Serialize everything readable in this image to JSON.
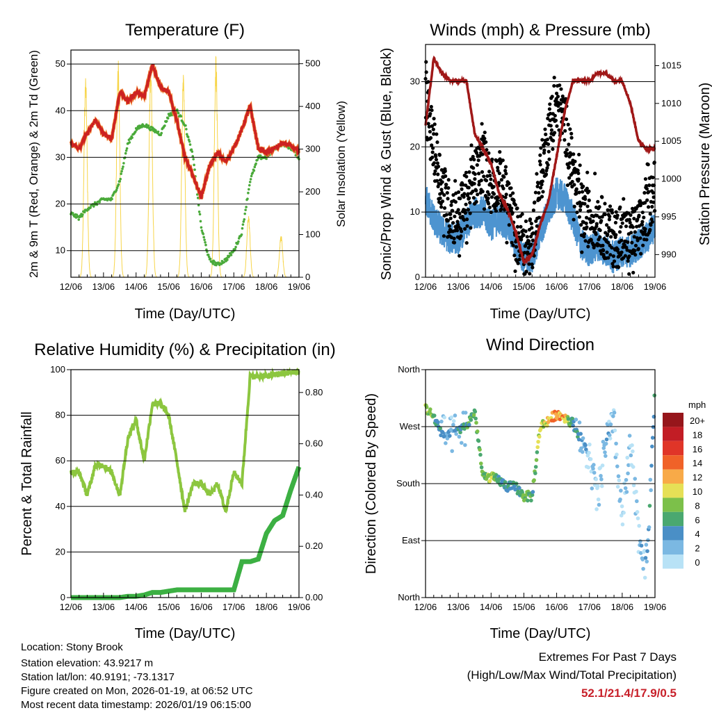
{
  "chart_data": [
    {
      "type": "line",
      "title": "Temperature (F)",
      "xlabel": "Time (Day/UTC)",
      "ylabel": "2m & 9m T (Red, Orange) & 2m Td (Green)",
      "ylabel_right": "Solar Insolation (Yellow)",
      "x_ticks": [
        "12/06",
        "13/06",
        "14/06",
        "15/06",
        "16/06",
        "17/06",
        "18/06",
        "19/06"
      ],
      "xlim_days": [
        0,
        7
      ],
      "ylim": [
        4.3,
        53
      ],
      "y_ticks": [
        10,
        20,
        30,
        40,
        50
      ],
      "ylim_right": [
        0,
        532
      ],
      "y_ticks_right": [
        0,
        100,
        200,
        300,
        400,
        500
      ],
      "grid": true,
      "sample_step_days": 0.25,
      "series": [
        {
          "name": "2m/9m Temperature",
          "color": "#cc2222",
          "values": [
            33,
            32,
            35,
            38,
            35,
            34,
            44,
            42,
            44,
            43,
            50,
            45,
            44,
            38,
            30,
            26,
            21.5,
            28,
            31,
            29,
            32,
            36,
            41,
            32,
            31,
            32,
            33,
            32.5,
            31
          ]
        },
        {
          "name": "2m Dewpoint",
          "color": "#4aaa3a",
          "values": [
            18,
            17,
            19,
            20,
            21,
            21,
            25,
            33,
            36,
            37,
            36,
            35,
            39,
            40,
            37,
            30,
            15,
            8,
            7,
            8,
            10,
            14,
            25,
            30,
            30,
            32,
            33,
            32,
            30
          ]
        },
        {
          "name": "Solar Insolation daily peak",
          "color": "#f7d54a",
          "axis": "right",
          "daily_peaks": [
            480,
            510,
            520,
            480,
            530,
            150,
            100
          ]
        }
      ]
    },
    {
      "type": "line",
      "title": "Winds (mph) & Pressure (mb)",
      "xlabel": "Time (Day/UTC)",
      "ylabel": "Sonic/Prop Wind & Gust (Blue, Black)",
      "ylabel_right": "Station Pressure (Maroon)",
      "x_ticks": [
        "12/06",
        "13/06",
        "14/06",
        "15/06",
        "16/06",
        "17/06",
        "18/06",
        "19/06"
      ],
      "xlim_days": [
        0,
        7
      ],
      "ylim": [
        0,
        35.7
      ],
      "y_ticks": [
        0,
        10,
        20,
        30
      ],
      "ylim_right": [
        987,
        1017.8
      ],
      "y_ticks_right": [
        990,
        995,
        1000,
        1005,
        1010,
        1015
      ],
      "grid": true,
      "sample_step_days": 0.25,
      "series": [
        {
          "name": "Wind",
          "color": "#4d94d0",
          "values": [
            12,
            9,
            7,
            6,
            6,
            8,
            10,
            10,
            8,
            9,
            8,
            5,
            3,
            3,
            7,
            10,
            13,
            12,
            9,
            5,
            4,
            5,
            4,
            3,
            4,
            4,
            5,
            6,
            8
          ]
        },
        {
          "name": "Gust",
          "color": "#000000",
          "values": [
            27,
            20,
            14,
            10,
            9,
            12,
            15,
            18,
            14,
            15,
            12,
            7,
            4,
            5,
            15,
            22,
            26,
            24,
            16,
            10,
            9,
            9,
            7,
            6,
            6,
            6,
            7,
            10,
            14
          ]
        },
        {
          "name": "Pressure",
          "color": "#a01818",
          "axis": "right",
          "values": [
            1007,
            1016,
            1014,
            1013,
            1013,
            1013,
            1006,
            1004,
            1002,
            998,
            996,
            993,
            989,
            990,
            994,
            997,
            1003,
            1009,
            1013,
            1013,
            1013,
            1014,
            1014,
            1013,
            1013,
            1010,
            1005,
            1004,
            1004
          ]
        }
      ]
    },
    {
      "type": "line",
      "title": "Relative Humidity (%) & Precipitation (in)",
      "xlabel": "Time (Day/UTC)",
      "ylabel": "Percent & Total Rainfall",
      "x_ticks": [
        "12/06",
        "13/06",
        "14/06",
        "15/06",
        "16/06",
        "17/06",
        "18/06",
        "19/06"
      ],
      "xlim_days": [
        0,
        7
      ],
      "ylim": [
        0,
        100
      ],
      "y_ticks": [
        0,
        20,
        40,
        60,
        80,
        100
      ],
      "ylim_right": [
        0,
        0.889
      ],
      "y_ticks_right": [
        "0.00",
        "0.20",
        "0.40",
        "0.60",
        "0.80"
      ],
      "grid": true,
      "sample_step_days": 0.25,
      "series": [
        {
          "name": "Relative Humidity",
          "color": "#8cc63f",
          "values": [
            55,
            55,
            45,
            58,
            58,
            55,
            45,
            70,
            78,
            60,
            85,
            85,
            80,
            60,
            38,
            50,
            50,
            45,
            50,
            38,
            55,
            50,
            97,
            97,
            97,
            98,
            98,
            99,
            99
          ]
        },
        {
          "name": "Total Precipitation",
          "color": "#3cb043",
          "axis": "right",
          "values": [
            0,
            0,
            0,
            0,
            0,
            0,
            0,
            0.005,
            0.005,
            0.01,
            0.02,
            0.02,
            0.025,
            0.03,
            0.03,
            0.03,
            0.03,
            0.03,
            0.03,
            0.03,
            0.03,
            0.14,
            0.14,
            0.15,
            0.25,
            0.3,
            0.32,
            0.42,
            0.51
          ]
        }
      ]
    },
    {
      "type": "scatter",
      "title": "Wind Direction",
      "xlabel": "Time (Day/UTC)",
      "ylabel": "Direction (Colored By Speed)",
      "x_ticks": [
        "12/06",
        "13/06",
        "14/06",
        "15/06",
        "16/06",
        "17/06",
        "18/06",
        "19/06"
      ],
      "xlim_days": [
        0,
        7
      ],
      "ylim": [
        0,
        360
      ],
      "y_tick_values": [
        0,
        90,
        180,
        270,
        360
      ],
      "y_tick_labels": [
        "North",
        "East",
        "South",
        "West",
        "North"
      ],
      "grid": true,
      "sample_step_days": 0.25,
      "direction_deg": [
        300,
        285,
        260,
        255,
        265,
        270,
        295,
        190,
        190,
        185,
        175,
        175,
        160,
        160,
        270,
        280,
        290,
        285,
        275,
        250,
        220,
        150,
        250,
        270,
        120,
        240,
        100,
        50,
        330
      ],
      "speed_mph": [
        10,
        8,
        4,
        3,
        4,
        6,
        8,
        8,
        10,
        6,
        6,
        6,
        8,
        6,
        10,
        12,
        14,
        12,
        6,
        4,
        2,
        2,
        4,
        2,
        2,
        2,
        2,
        3,
        6
      ],
      "colorbar": {
        "title": "mph",
        "labels": [
          "20+",
          "18",
          "16",
          "14",
          "12",
          "10",
          "8",
          "6",
          "4",
          "2",
          "0"
        ],
        "colors": [
          "#96161b",
          "#c21d25",
          "#e03528",
          "#f06228",
          "#f8aa48",
          "#e6e056",
          "#7cc04a",
          "#4aa870",
          "#4a8fc6",
          "#7bb8e2",
          "#b8e2f6"
        ]
      }
    }
  ],
  "footer": {
    "location": "Location: Stony Brook",
    "elevation": "Station elevation: 43.9217 m",
    "latlon": "Station lat/lon: 40.9191; -73.1317",
    "created": "Figure created on Mon, 2026-01-19, at 06:52 UTC",
    "timestamp": "Most recent data timestamp: 2026/01/19 06:15:00"
  },
  "extremes": {
    "title": "Extremes For Past 7 Days",
    "subtitle": "(High/Low/Max Wind/Total Precipitation)",
    "values": "52.1/21.4/17.9/0.5"
  }
}
